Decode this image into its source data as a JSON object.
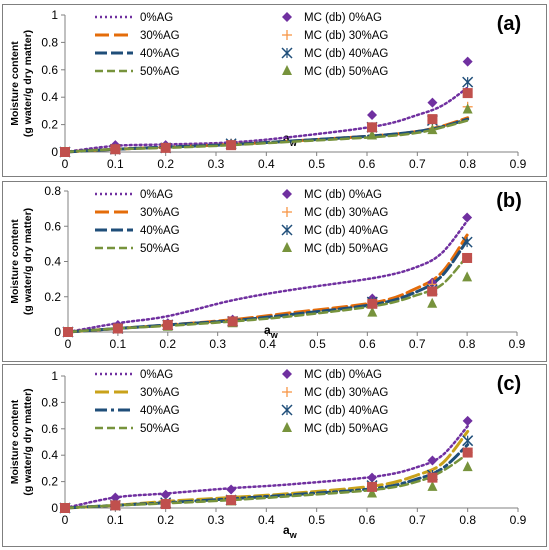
{
  "figure": {
    "colors": {
      "panel_border": "#7f7f7f",
      "axis": "#808080",
      "series_0": "#7030a0",
      "series_30": "#e46c0a",
      "series_40": "#1f4e79",
      "series_50": "#77933c",
      "marker_0": "#7030a0",
      "marker_30": "#f79646",
      "marker_40": "#1f4e79",
      "marker_50": "#77933c",
      "mc_square": "#c0504d",
      "curve_30_c": "#c9a21a"
    }
  },
  "chart_data": [
    {
      "type": "line",
      "panel_label": "(a)",
      "ylabel": "Moisture content",
      "ylabel2": "(g water/g dry matter)",
      "xlabel_base": "a",
      "xlabel_sub": "w",
      "xlim": [
        0,
        0.9
      ],
      "ylim": [
        0,
        1
      ],
      "x_ticks": [
        "0",
        "0.1",
        "0.2",
        "0.3",
        "0.4",
        "0.5",
        "0.6",
        "0.7",
        "0.8",
        "0.9"
      ],
      "y_ticks": [
        "0",
        "0.2",
        "0.4",
        "0.6",
        "0.8",
        "1"
      ],
      "legend_lines": [
        "0%AG",
        "30%AG",
        "40%AG",
        "50%AG"
      ],
      "legend_markers": [
        "MC (db) 0%AG",
        "MC (db) 30%AG",
        "MC (db) 40%AG",
        "MC (db) 50%AG"
      ],
      "model_x": [
        0,
        0.1,
        0.2,
        0.33,
        0.45,
        0.62,
        0.7,
        0.75,
        0.8
      ],
      "model_series": [
        {
          "name": "0%AG",
          "values": [
            0,
            0.045,
            0.055,
            0.07,
            0.11,
            0.19,
            0.27,
            0.34,
            0.47
          ]
        },
        {
          "name": "30%AG",
          "values": [
            0,
            0.02,
            0.035,
            0.055,
            0.08,
            0.12,
            0.15,
            0.19,
            0.25
          ]
        },
        {
          "name": "40%AG",
          "values": [
            0,
            0.02,
            0.035,
            0.055,
            0.08,
            0.12,
            0.15,
            0.185,
            0.24
          ]
        },
        {
          "name": "50%AG",
          "values": [
            0,
            0.02,
            0.03,
            0.05,
            0.075,
            0.11,
            0.14,
            0.18,
            0.23
          ]
        }
      ],
      "obs_x": [
        0,
        0.1,
        0.2,
        0.33,
        0.61,
        0.73,
        0.8
      ],
      "obs_series": [
        {
          "name": "MC (db) 0%AG",
          "marker": "diamond",
          "values": [
            0,
            0.05,
            0.05,
            0.06,
            0.27,
            0.36,
            0.66
          ]
        },
        {
          "name": "MC (db) 30%AG",
          "marker": "plus",
          "values": [
            0,
            0.02,
            0.03,
            0.06,
            0.16,
            0.23,
            0.33
          ]
        },
        {
          "name": "MC (db) 40%AG",
          "marker": "star",
          "values": [
            0,
            0.02,
            0.03,
            0.06,
            0.18,
            0.23,
            0.51
          ]
        },
        {
          "name": "MC (db) 50%AG",
          "marker": "triangle",
          "values": [
            0,
            0.02,
            0.03,
            0.05,
            0.12,
            0.16,
            0.31
          ]
        },
        {
          "name": "",
          "marker": "square",
          "values": [
            0,
            0.02,
            0.03,
            0.05,
            0.18,
            0.24,
            0.43
          ]
        }
      ]
    },
    {
      "type": "line",
      "panel_label": "(b)",
      "ylabel": "Moisture content",
      "ylabel2": "(g water/g dry matter)",
      "xlabel_base": "a",
      "xlabel_sub": "w",
      "xlim": [
        0,
        0.9
      ],
      "ylim": [
        0,
        0.8
      ],
      "x_ticks": [
        "0",
        "0.1",
        "0.2",
        "0.3",
        "0.4",
        "0.5",
        "0.6",
        "0.7",
        "0.8",
        "0.9"
      ],
      "y_ticks": [
        "0",
        "0.2",
        "0.4",
        "0.6",
        "0.8"
      ],
      "legend_lines": [
        "0%AG",
        "30%AG",
        "40%AG",
        "50%AG"
      ],
      "legend_markers": [
        "MC (db) 0%AG",
        "MC (db) 30%AG",
        "MC (db) 40%AG",
        "MC (db) 50%AG"
      ],
      "model_x": [
        0,
        0.1,
        0.2,
        0.33,
        0.45,
        0.62,
        0.7,
        0.75,
        0.8
      ],
      "model_series": [
        {
          "name": "0%AG",
          "values": [
            0,
            0.05,
            0.09,
            0.18,
            0.24,
            0.31,
            0.37,
            0.45,
            0.63
          ]
        },
        {
          "name": "30%AG",
          "values": [
            0,
            0.02,
            0.04,
            0.07,
            0.11,
            0.17,
            0.25,
            0.34,
            0.55
          ]
        },
        {
          "name": "40%AG",
          "values": [
            0,
            0.02,
            0.04,
            0.065,
            0.1,
            0.16,
            0.23,
            0.32,
            0.52
          ]
        },
        {
          "name": "50%AG",
          "values": [
            0,
            0.02,
            0.035,
            0.06,
            0.09,
            0.15,
            0.21,
            0.27,
            0.43
          ]
        }
      ],
      "obs_x": [
        0,
        0.1,
        0.2,
        0.33,
        0.61,
        0.73,
        0.8
      ],
      "obs_series": [
        {
          "name": "MC (db) 0%AG",
          "marker": "diamond",
          "values": [
            0,
            0.04,
            0.05,
            0.07,
            0.19,
            0.28,
            0.65
          ]
        },
        {
          "name": "MC (db) 30%AG",
          "marker": "plus",
          "values": [
            0,
            0.02,
            0.04,
            0.06,
            0.17,
            0.27,
            0.42
          ]
        },
        {
          "name": "MC (db) 40%AG",
          "marker": "star",
          "values": [
            0,
            0.02,
            0.04,
            0.06,
            0.17,
            0.24,
            0.51
          ]
        },
        {
          "name": "MC (db) 50%AG",
          "marker": "triangle",
          "values": [
            0,
            0.02,
            0.03,
            0.05,
            0.11,
            0.16,
            0.31
          ]
        },
        {
          "name": "",
          "marker": "square",
          "values": [
            0,
            0.02,
            0.04,
            0.06,
            0.16,
            0.23,
            0.42
          ]
        }
      ]
    },
    {
      "type": "line",
      "panel_label": "(c)",
      "ylabel": "Moisture content",
      "ylabel2": "(g water/g dry matter)",
      "xlabel_base": "a",
      "xlabel_sub": "w",
      "xlim": [
        0,
        0.9
      ],
      "ylim": [
        0,
        1
      ],
      "x_ticks": [
        "0",
        "0.1",
        "0.2",
        "0.3",
        "0.4",
        "0.5",
        "0.6",
        "0.7",
        "0.8",
        "0.9"
      ],
      "y_ticks": [
        "0",
        "0.2",
        "0.4",
        "0.6",
        "0.8",
        "1"
      ],
      "legend_lines": [
        "0%AG",
        "30%AG",
        "40%AG",
        "50%AG"
      ],
      "legend_markers": [
        "MC (db) 0%AG",
        "MC (db) 30%AG",
        "MC (db) 40%AG",
        "MC (db) 50%AG"
      ],
      "model_x": [
        0,
        0.1,
        0.2,
        0.33,
        0.45,
        0.62,
        0.7,
        0.75,
        0.8
      ],
      "model_series": [
        {
          "name": "0%AG",
          "values": [
            0,
            0.08,
            0.11,
            0.15,
            0.18,
            0.24,
            0.31,
            0.4,
            0.62
          ]
        },
        {
          "name": "30%AG",
          "values": [
            0,
            0.02,
            0.05,
            0.08,
            0.11,
            0.17,
            0.25,
            0.34,
            0.58
          ]
        },
        {
          "name": "40%AG",
          "values": [
            0,
            0.02,
            0.04,
            0.07,
            0.1,
            0.15,
            0.22,
            0.3,
            0.48
          ]
        },
        {
          "name": "50%AG",
          "values": [
            0,
            0.02,
            0.035,
            0.06,
            0.09,
            0.14,
            0.2,
            0.28,
            0.41
          ]
        }
      ],
      "obs_x": [
        0,
        0.1,
        0.2,
        0.33,
        0.61,
        0.73,
        0.8
      ],
      "obs_series": [
        {
          "name": "MC (db) 0%AG",
          "marker": "diamond",
          "values": [
            0,
            0.08,
            0.1,
            0.14,
            0.23,
            0.36,
            0.66
          ]
        },
        {
          "name": "MC (db) 30%AG",
          "marker": "plus",
          "values": [
            0,
            0.02,
            0.04,
            0.06,
            0.16,
            0.26,
            0.42
          ]
        },
        {
          "name": "MC (db) 40%AG",
          "marker": "star",
          "values": [
            0,
            0.02,
            0.04,
            0.06,
            0.17,
            0.25,
            0.51
          ]
        },
        {
          "name": "MC (db) 50%AG",
          "marker": "triangle",
          "values": [
            0,
            0.02,
            0.03,
            0.05,
            0.11,
            0.16,
            0.31
          ]
        },
        {
          "name": "",
          "marker": "square",
          "values": [
            0,
            0.02,
            0.03,
            0.06,
            0.16,
            0.23,
            0.42
          ]
        }
      ]
    }
  ]
}
